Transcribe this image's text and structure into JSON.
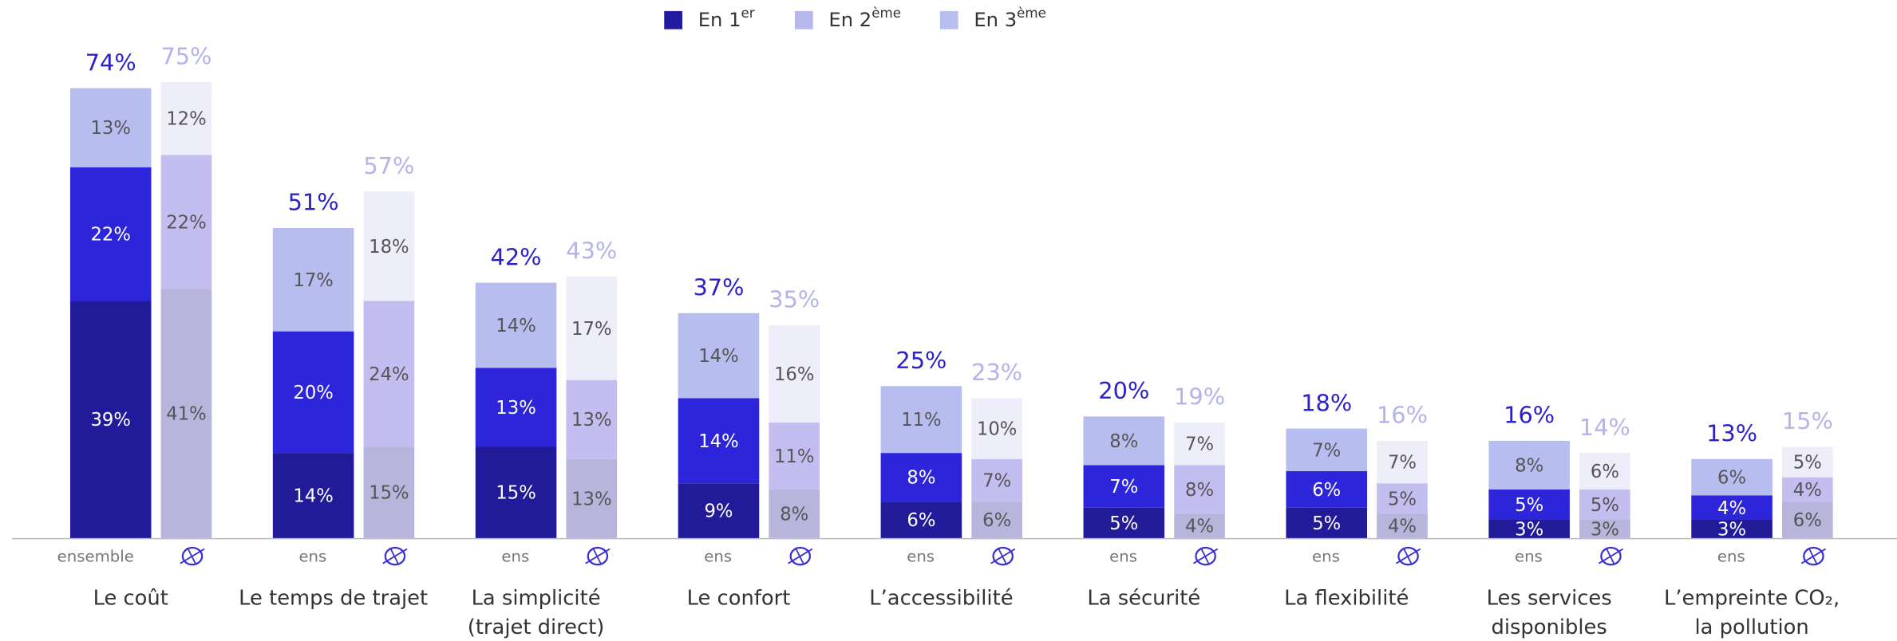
{
  "chart_data": {
    "type": "bar",
    "stacked": true,
    "categories": [
      [
        "Le coût"
      ],
      [
        "Le temps de trajet"
      ],
      [
        "La simplicité",
        "(trajet direct)"
      ],
      [
        "Le confort"
      ],
      [
        "L’accessibilité"
      ],
      [
        "La sécurité"
      ],
      [
        "La flexibilité"
      ],
      [
        "Les services",
        "disponibles"
      ],
      [
        "L’empreinte CO₂,",
        "la pollution"
      ]
    ],
    "group_labels": [
      "ensemble",
      "ens",
      "ens",
      "ens",
      "ens",
      "ens",
      "ens",
      "ens",
      "ens"
    ],
    "ylim": [
      0,
      80
    ],
    "legend": [
      {
        "text": "En 1",
        "sup": "er",
        "color": "#221ba0"
      },
      {
        "text": "En 2",
        "sup": "ème",
        "color": "#b8b7ec"
      },
      {
        "text": "En 3",
        "sup": "ème",
        "color": "#b8bfef"
      }
    ],
    "stacks": [
      {
        "total_color": "#2a22c8",
        "totals": [
          74,
          51,
          42,
          37,
          25,
          20,
          18,
          16,
          13
        ],
        "totals_labels": [
          "74%",
          "51%",
          "42%",
          "37%",
          "25%",
          "20%",
          "18%",
          "16%",
          "13%"
        ],
        "series": [
          {
            "color": "#211b99",
            "label_color": "#ffffff",
            "values": [
              39,
              14,
              15,
              9,
              6,
              5,
              5,
              3,
              3
            ],
            "value_labels": [
              "39%",
              "14%",
              "15%",
              "9%",
              "6%",
              "5%",
              "5%",
              "3%",
              "3%"
            ]
          },
          {
            "color": "#2d25d9",
            "label_color": "#ffffff",
            "values": [
              22,
              20,
              13,
              14,
              8,
              7,
              6,
              5,
              4
            ],
            "value_labels": [
              "22%",
              "20%",
              "13%",
              "14%",
              "8%",
              "7%",
              "6%",
              "5%",
              "4%"
            ]
          },
          {
            "color": "#b7bdee",
            "label_color": "#555555",
            "values": [
              13,
              17,
              14,
              14,
              11,
              8,
              7,
              8,
              6
            ],
            "value_labels": [
              "13%",
              "17%",
              "14%",
              "14%",
              "11%",
              "8%",
              "7%",
              "8%",
              "6%"
            ]
          }
        ]
      },
      {
        "total_color": "#b5b3ea",
        "totals": [
          75,
          57,
          43,
          35,
          23,
          19,
          16,
          14,
          15
        ],
        "totals_labels": [
          "75%",
          "57%",
          "43%",
          "35%",
          "23%",
          "19%",
          "16%",
          "14%",
          "15%"
        ],
        "series": [
          {
            "color": "#b8b5dc",
            "label_color": "#555555",
            "values": [
              41,
              15,
              13,
              8,
              6,
              4,
              4,
              3,
              6
            ],
            "value_labels": [
              "41%",
              "15%",
              "13%",
              "8%",
              "6%",
              "4%",
              "4%",
              "3%",
              "6%"
            ]
          },
          {
            "color": "#c3bdf0",
            "label_color": "#555555",
            "values": [
              22,
              24,
              13,
              11,
              7,
              8,
              5,
              5,
              4
            ],
            "value_labels": [
              "22%",
              "24%",
              "13%",
              "11%",
              "7%",
              "8%",
              "5%",
              "5%",
              "4%"
            ]
          },
          {
            "color": "#eeedfa",
            "label_color": "#555555",
            "values": [
              12,
              18,
              17,
              16,
              10,
              7,
              7,
              6,
              5
            ],
            "value_labels": [
              "12%",
              "18%",
              "17%",
              "16%",
              "10%",
              "7%",
              "7%",
              "6%",
              "5%"
            ]
          }
        ]
      }
    ]
  }
}
